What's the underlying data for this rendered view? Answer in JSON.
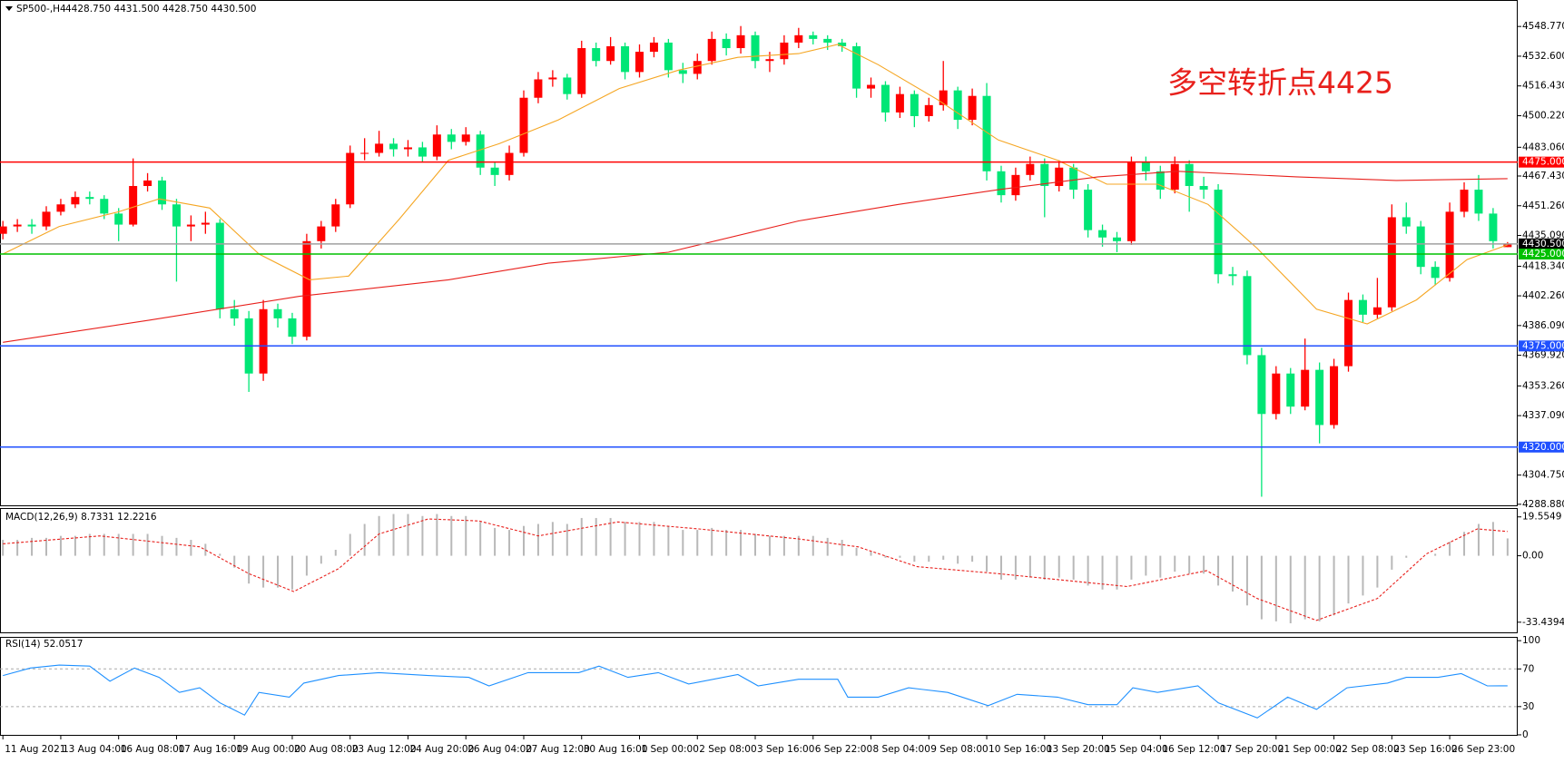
{
  "chart_data": {
    "type": "candlestick",
    "title": "SP500-,H4",
    "subtitle": "4428.750 4431.500 4428.750 4430.500",
    "annotation": "多空转折点4425",
    "up_color": "#ff0000",
    "down_color": "#00e676",
    "xlim": [
      -0.2,
      104.7
    ],
    "xticks": [
      {
        "value": 0,
        "label": "11 Aug 2021"
      },
      {
        "value": 4,
        "label": "13 Aug 04:00"
      },
      {
        "value": 8,
        "label": "16 Aug 08:00"
      },
      {
        "value": 12,
        "label": "17 Aug 16:00"
      },
      {
        "value": 16,
        "label": "19 Aug 00:00"
      },
      {
        "value": 20,
        "label": "20 Aug 08:00"
      },
      {
        "value": 24,
        "label": "23 Aug 12:00"
      },
      {
        "value": 28,
        "label": "24 Aug 20:00"
      },
      {
        "value": 32,
        "label": "26 Aug 04:00"
      },
      {
        "value": 36,
        "label": "27 Aug 12:00"
      },
      {
        "value": 40,
        "label": "30 Aug 16:00"
      },
      {
        "value": 44,
        "label": "1 Sep 00:00"
      },
      {
        "value": 48,
        "label": "2 Sep 08:00"
      },
      {
        "value": 52,
        "label": "3 Sep 16:00"
      },
      {
        "value": 56,
        "label": "6 Sep 22:00"
      },
      {
        "value": 60,
        "label": "8 Sep 04:00"
      },
      {
        "value": 64,
        "label": "9 Sep 08:00"
      },
      {
        "value": 68,
        "label": "10 Sep 16:00"
      },
      {
        "value": 72,
        "label": "13 Sep 20:00"
      },
      {
        "value": 76,
        "label": "15 Sep 04:00"
      },
      {
        "value": 80,
        "label": "16 Sep 12:00"
      },
      {
        "value": 84,
        "label": "17 Sep 20:00"
      },
      {
        "value": 88,
        "label": "21 Sep 00:00"
      },
      {
        "value": 92,
        "label": "22 Sep 08:00"
      },
      {
        "value": 96,
        "label": "23 Sep 16:00"
      },
      {
        "value": 100,
        "label": "26 Sep 23:00"
      }
    ],
    "ylim": [
      4288.3,
      4560.7
    ],
    "yticks": [
      {
        "value": 4548.77,
        "label": "4548.770"
      },
      {
        "value": 4532.6,
        "label": "4532.600"
      },
      {
        "value": 4516.43,
        "label": "4516.430"
      },
      {
        "value": 4500.22,
        "label": "4500.220"
      },
      {
        "value": 4483.06,
        "label": "4483.060"
      },
      {
        "value": 4467.43,
        "label": "4467.430"
      },
      {
        "value": 4451.26,
        "label": "4451.260"
      },
      {
        "value": 4435.09,
        "label": "4435.090"
      },
      {
        "value": 4418.34,
        "label": "4418.340"
      },
      {
        "value": 4402.26,
        "label": "4402.260"
      },
      {
        "value": 4386.09,
        "label": "4386.090"
      },
      {
        "value": 4369.92,
        "label": "4369.920"
      },
      {
        "value": 4353.26,
        "label": "4353.260"
      },
      {
        "value": 4337.09,
        "label": "4337.090"
      },
      {
        "value": 4304.75,
        "label": "4304.750"
      },
      {
        "value": 4288.88,
        "label": "4288.880"
      }
    ],
    "levels": [
      {
        "value": 4475,
        "label": "4475.000",
        "color": "#ff0000"
      },
      {
        "value": 4430.5,
        "label": "4430.500",
        "color": "#a0a0a0"
      },
      {
        "value": 4425,
        "label": "4425.000",
        "color": "#00c000"
      },
      {
        "value": 4375,
        "label": "4375.000",
        "color": "#2050ff"
      },
      {
        "value": 4320,
        "label": "4320.000",
        "color": "#2050ff"
      }
    ],
    "candles": [
      [
        4436,
        4443,
        4433,
        4440
      ],
      [
        4440,
        4444,
        4437,
        4441
      ],
      [
        4441,
        4444,
        4436,
        4440
      ],
      [
        4440,
        4451,
        4438,
        4448
      ],
      [
        4448,
        4455,
        4446,
        4452
      ],
      [
        4452,
        4459,
        4450,
        4456
      ],
      [
        4456,
        4459,
        4452,
        4455
      ],
      [
        4455,
        4457,
        4444,
        4447
      ],
      [
        4447,
        4450,
        4432,
        4441
      ],
      [
        4441,
        4477,
        4440,
        4462
      ],
      [
        4462,
        4469,
        4459,
        4465
      ],
      [
        4465,
        4467,
        4449,
        4452
      ],
      [
        4452,
        4455,
        4410,
        4440
      ],
      [
        4440,
        4446,
        4432,
        4441
      ],
      [
        4441,
        4448,
        4436,
        4442
      ],
      [
        4442,
        4444,
        4390,
        4395
      ],
      [
        4395,
        4400,
        4386,
        4390
      ],
      [
        4390,
        4394,
        4350,
        4360
      ],
      [
        4360,
        4400,
        4356,
        4395
      ],
      [
        4395,
        4398,
        4385,
        4390
      ],
      [
        4390,
        4393,
        4376,
        4380
      ],
      [
        4380,
        4436,
        4378,
        4432
      ],
      [
        4432,
        4443,
        4428,
        4440
      ],
      [
        4440,
        4455,
        4437,
        4452
      ],
      [
        4452,
        4484,
        4450,
        4480
      ],
      [
        4480,
        4488,
        4476,
        4480
      ],
      [
        4480,
        4492,
        4478,
        4485
      ],
      [
        4485,
        4488,
        4478,
        4482
      ],
      [
        4482,
        4487,
        4478,
        4483
      ],
      [
        4483,
        4486,
        4475,
        4478
      ],
      [
        4478,
        4495,
        4476,
        4490
      ],
      [
        4490,
        4493,
        4482,
        4486
      ],
      [
        4486,
        4494,
        4484,
        4490
      ],
      [
        4490,
        4492,
        4468,
        4472
      ],
      [
        4472,
        4475,
        4462,
        4468
      ],
      [
        4468,
        4484,
        4465,
        4480
      ],
      [
        4480,
        4514,
        4478,
        4510
      ],
      [
        4510,
        4524,
        4507,
        4520
      ],
      [
        4520,
        4525,
        4516,
        4521
      ],
      [
        4521,
        4523,
        4509,
        4512
      ],
      [
        4512,
        4541,
        4510,
        4537
      ],
      [
        4537,
        4540,
        4527,
        4530
      ],
      [
        4530,
        4543,
        4528,
        4538
      ],
      [
        4538,
        4540,
        4520,
        4524
      ],
      [
        4524,
        4539,
        4521,
        4535
      ],
      [
        4535,
        4543,
        4532,
        4540
      ],
      [
        4540,
        4542,
        4521,
        4525
      ],
      [
        4525,
        4529,
        4518,
        4523
      ],
      [
        4523,
        4534,
        4520,
        4530
      ],
      [
        4530,
        4546,
        4528,
        4542
      ],
      [
        4542,
        4545,
        4533,
        4537
      ],
      [
        4537,
        4549,
        4534,
        4544
      ],
      [
        4544,
        4546,
        4526,
        4530
      ],
      [
        4530,
        4535,
        4524,
        4531
      ],
      [
        4531,
        4544,
        4528,
        4540
      ],
      [
        4540,
        4548,
        4537,
        4544
      ],
      [
        4544,
        4546,
        4539,
        4542
      ],
      [
        4542,
        4544,
        4536,
        4540
      ],
      [
        4540,
        4542,
        4535,
        4538
      ],
      [
        4538,
        4540,
        4510,
        4515
      ],
      [
        4515,
        4521,
        4510,
        4517
      ],
      [
        4517,
        4519,
        4497,
        4502
      ],
      [
        4502,
        4516,
        4499,
        4512
      ],
      [
        4512,
        4514,
        4494,
        4500
      ],
      [
        4500,
        4510,
        4497,
        4506
      ],
      [
        4506,
        4530,
        4503,
        4514
      ],
      [
        4514,
        4516,
        4493,
        4498
      ],
      [
        4498,
        4515,
        4495,
        4511
      ],
      [
        4511,
        4518,
        4465,
        4470
      ],
      [
        4470,
        4473,
        4453,
        4457
      ],
      [
        4457,
        4472,
        4454,
        4468
      ],
      [
        4468,
        4478,
        4465,
        4474
      ],
      [
        4474,
        4477,
        4445,
        4462
      ],
      [
        4462,
        4476,
        4459,
        4472
      ],
      [
        4472,
        4474,
        4455,
        4460
      ],
      [
        4460,
        4463,
        4434,
        4438
      ],
      [
        4438,
        4441,
        4429,
        4434
      ],
      [
        4434,
        4437,
        4426,
        4432
      ],
      [
        4432,
        4478,
        4430,
        4475
      ],
      [
        4475,
        4478,
        4465,
        4470
      ],
      [
        4470,
        4473,
        4455,
        4460
      ],
      [
        4460,
        4478,
        4458,
        4474
      ],
      [
        4474,
        4476,
        4448,
        4462
      ],
      [
        4462,
        4467,
        4455,
        4460
      ],
      [
        4460,
        4463,
        4409,
        4414
      ],
      [
        4414,
        4418,
        4408,
        4413
      ],
      [
        4413,
        4416,
        4365,
        4370
      ],
      [
        4370,
        4374,
        4293,
        4338
      ],
      [
        4338,
        4364,
        4335,
        4360
      ],
      [
        4360,
        4363,
        4338,
        4342
      ],
      [
        4342,
        4379,
        4340,
        4362
      ],
      [
        4362,
        4366,
        4322,
        4332
      ],
      [
        4332,
        4368,
        4330,
        4364
      ],
      [
        4364,
        4404,
        4361,
        4400
      ],
      [
        4400,
        4403,
        4388,
        4392
      ],
      [
        4392,
        4412,
        4390,
        4396
      ],
      [
        4396,
        4452,
        4394,
        4445
      ],
      [
        4445,
        4453,
        4436,
        4440
      ],
      [
        4440,
        4443,
        4414,
        4418
      ],
      [
        4418,
        4421,
        4408,
        4412
      ],
      [
        4412,
        4453,
        4410,
        4448
      ],
      [
        4448,
        4464,
        4445,
        4460
      ],
      [
        4460,
        4468,
        4443,
        4447
      ],
      [
        4447,
        4450,
        4428,
        4432
      ],
      [
        4428.75,
        4431.5,
        4428.75,
        4430.5
      ]
    ],
    "lines": [
      {
        "color": "#f5a623",
        "x": [
          0,
          3.9,
          8,
          10.8,
          14.3,
          17.7,
          21.2,
          23.9,
          27.4,
          30.8,
          34.3,
          38.4,
          42.6,
          46.7,
          50.8,
          55,
          57.7,
          60.5,
          64.6,
          68.8,
          72.9,
          76.3,
          79.8,
          83.3,
          86.7,
          90.8,
          94.3,
          97.7,
          101.2,
          104
        ],
        "values": [
          4425,
          4440,
          4448,
          4455,
          4450,
          4425,
          4411,
          4413,
          4444,
          4476,
          4485,
          4498,
          4515,
          4525,
          4532,
          4534,
          4539,
          4528,
          4509,
          4487,
          4476,
          4463,
          4463,
          4452,
          4428,
          4395,
          4387,
          4400,
          4422,
          4430
        ]
      },
      {
        "color": "#e8201c",
        "x": [
          0,
          10.1,
          20.5,
          30.8,
          37.7,
          46,
          55,
          61.9,
          68.8,
          75.7,
          81.2,
          89.4,
          96.3,
          104
        ],
        "values": [
          4377,
          4389,
          4402,
          4411,
          4420,
          4426,
          4443,
          4452,
          4460,
          4467,
          4470,
          4467,
          4465,
          4466
        ]
      }
    ],
    "macd": {
      "title": "MACD(12,26,9) 8.7331 12.2216",
      "ylim": [
        -39,
        24
      ],
      "yticks": [
        19.5549,
        {
          "value": 0,
          "label": "0.00"
        },
        -33.4394
      ],
      "histogram_color": "#b8b8b8",
      "histogram": [
        8,
        8,
        9,
        9,
        10,
        10,
        11,
        11,
        11,
        11,
        11,
        10,
        9,
        8,
        6,
        1,
        -6,
        -14,
        -16,
        -16,
        -17,
        -10,
        -4,
        3,
        11,
        16,
        20,
        21,
        21,
        20,
        21,
        20,
        20,
        17,
        14,
        13,
        15,
        16,
        17,
        16,
        19,
        19,
        19,
        17,
        17,
        17,
        15,
        13,
        13,
        14,
        13,
        13,
        11,
        10,
        10,
        10,
        10,
        9,
        8,
        4,
        2,
        -1,
        -1,
        -3,
        -3,
        -2,
        -4,
        -3,
        -8,
        -12,
        -12,
        -11,
        -12,
        -11,
        -12,
        -15,
        -17,
        -17,
        -12,
        -10,
        -11,
        -8,
        -9,
        -9,
        -15,
        -18,
        -25,
        -32,
        -33,
        -34,
        -32,
        -33,
        -30,
        -24,
        -20,
        -16,
        -7,
        -1,
        0,
        1,
        7,
        12,
        16,
        17,
        8.7331
      ],
      "signal": {
        "color": "#e8201c",
        "x": [
          0,
          6.7,
          13.6,
          17,
          20.1,
          23.2,
          26,
          29.4,
          32.9,
          37,
          42.5,
          48.1,
          55,
          59.1,
          63.2,
          68.8,
          77.7,
          83.2,
          86.7,
          90.8,
          95,
          98.4,
          101.9,
          104
        ],
        "values": [
          6,
          10,
          4.5,
          -9,
          -18,
          -6.5,
          11,
          18.5,
          17.5,
          10,
          17,
          13.5,
          8.5,
          4.5,
          -5.5,
          -9,
          -15.5,
          -7.5,
          -21.5,
          -32.5,
          -21.5,
          1,
          13.5,
          12.2216
        ]
      }
    },
    "rsi": {
      "title": "RSI(14) 52.0517",
      "ylim": [
        -1,
        104
      ],
      "yticks": [
        100,
        70,
        30,
        0
      ],
      "levels": [
        70,
        30
      ],
      "color": "#1e90ff",
      "x": [
        0,
        1.9,
        3.9,
        6,
        7.4,
        9.1,
        10.8,
        12.2,
        13.6,
        15,
        16.7,
        17.7,
        19.8,
        20.8,
        23.2,
        26,
        29.4,
        32.2,
        33.6,
        36.3,
        39.8,
        41.2,
        43.2,
        45.3,
        47.4,
        50.8,
        52.2,
        55,
        57.7,
        58.4,
        60.5,
        62.6,
        65.3,
        68.1,
        70.1,
        72.9,
        75,
        77,
        78.1,
        79.8,
        82.6,
        84,
        86.7,
        88.8,
        90.8,
        92.9,
        95.7,
        97,
        99.2,
        100.8,
        102.6,
        104
      ],
      "values": [
        63,
        71,
        74,
        73,
        57,
        71,
        61,
        45,
        50,
        34,
        21,
        45,
        40,
        55,
        63,
        66,
        63,
        61,
        52,
        66,
        66,
        73,
        61,
        66,
        54,
        64,
        52,
        59,
        59,
        40,
        40,
        50,
        45,
        31,
        43,
        40,
        32,
        32,
        50,
        45,
        52,
        34,
        18,
        40,
        27,
        50,
        55,
        61,
        61,
        65,
        52,
        52.0517
      ]
    }
  }
}
